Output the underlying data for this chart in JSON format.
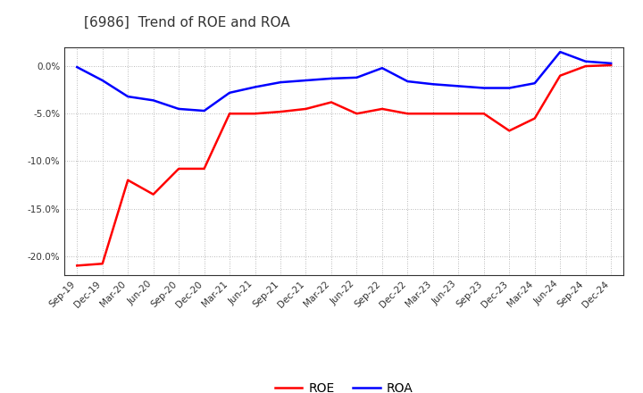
{
  "title": "[6986]  Trend of ROE and ROA",
  "x_labels": [
    "Sep-19",
    "Dec-19",
    "Mar-20",
    "Jun-20",
    "Sep-20",
    "Dec-20",
    "Mar-21",
    "Jun-21",
    "Sep-21",
    "Dec-21",
    "Mar-22",
    "Jun-22",
    "Sep-22",
    "Dec-22",
    "Mar-23",
    "Jun-23",
    "Sep-23",
    "Dec-23",
    "Mar-24",
    "Jun-24",
    "Sep-24",
    "Dec-24"
  ],
  "roe": [
    -21.0,
    -20.8,
    -12.0,
    -13.5,
    -10.8,
    -10.8,
    -5.0,
    -5.0,
    -4.8,
    -4.5,
    -3.8,
    -5.0,
    -4.5,
    -5.0,
    -5.0,
    -5.0,
    -5.0,
    -6.8,
    -5.5,
    -1.0,
    0.0,
    0.1
  ],
  "roa": [
    -0.1,
    -1.5,
    -3.2,
    -3.6,
    -4.5,
    -4.7,
    -2.8,
    -2.2,
    -1.7,
    -1.5,
    -1.3,
    -1.2,
    -0.2,
    -1.6,
    -1.9,
    -2.1,
    -2.3,
    -2.3,
    -1.8,
    1.5,
    0.5,
    0.3
  ],
  "roe_color": "#ff0000",
  "roa_color": "#0000ff",
  "ylim": [
    -22,
    2.0
  ],
  "yticks": [
    0.0,
    -5.0,
    -10.0,
    -15.0,
    -20.0
  ],
  "background_color": "#ffffff",
  "grid_color": "#999999",
  "title_fontsize": 11,
  "tick_fontsize": 7.5,
  "legend_fontsize": 10,
  "title_color": "#333333",
  "tick_color": "#333333"
}
